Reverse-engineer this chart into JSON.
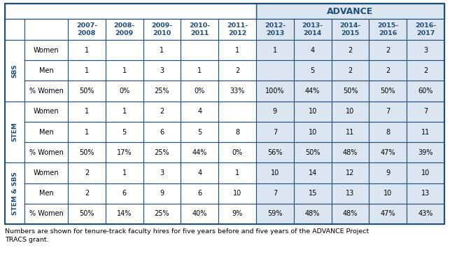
{
  "title": "ADVANCE",
  "col_headers": [
    "2007-\n2008",
    "2008-\n2009",
    "2009-\n2010",
    "2010-\n2011",
    "2011-\n2012",
    "2012-\n2013",
    "2013-\n2014",
    "2014-\n2015",
    "2015-\n2016",
    "2016-\n2017"
  ],
  "row_groups": [
    {
      "label": "SBS",
      "rows": [
        {
          "name": "Women",
          "values": [
            "1",
            "",
            "1",
            "",
            "1",
            "1",
            "4",
            "2",
            "2",
            "3"
          ]
        },
        {
          "name": "Men",
          "values": [
            "1",
            "1",
            "3",
            "1",
            "2",
            "",
            "5",
            "2",
            "2",
            "2"
          ]
        },
        {
          "name": "% Women",
          "values": [
            "50%",
            "0%",
            "25%",
            "0%",
            "33%",
            "100%",
            "44%",
            "50%",
            "50%",
            "60%"
          ]
        }
      ]
    },
    {
      "label": "STEM",
      "rows": [
        {
          "name": "Women",
          "values": [
            "1",
            "1",
            "2",
            "4",
            "",
            "9",
            "10",
            "10",
            "7",
            "7"
          ]
        },
        {
          "name": "Men",
          "values": [
            "1",
            "5",
            "6",
            "5",
            "8",
            "7",
            "10",
            "11",
            "8",
            "11"
          ]
        },
        {
          "name": "% Women",
          "values": [
            "50%",
            "17%",
            "25%",
            "44%",
            "0%",
            "56%",
            "50%",
            "48%",
            "47%",
            "39%"
          ]
        }
      ]
    },
    {
      "label": "STEM & SBS",
      "rows": [
        {
          "name": "Women",
          "values": [
            "2",
            "1",
            "3",
            "4",
            "1",
            "10",
            "14",
            "12",
            "9",
            "10"
          ]
        },
        {
          "name": "Men",
          "values": [
            "2",
            "6",
            "9",
            "6",
            "10",
            "7",
            "15",
            "13",
            "10",
            "13"
          ]
        },
        {
          "name": "% Women",
          "values": [
            "50%",
            "14%",
            "25%",
            "40%",
            "9%",
            "59%",
            "48%",
            "48%",
            "47%",
            "43%"
          ]
        }
      ]
    }
  ],
  "footnote": "Numbers are shown for tenure-track faculty hires for five years before and five years of the ADVANCE Project\nTRACS grant.",
  "advance_bg": "#dce6f1",
  "header_text_color": "#1f4e79",
  "label_text_color": "#1f4e79",
  "border_color": "#1f4e79"
}
